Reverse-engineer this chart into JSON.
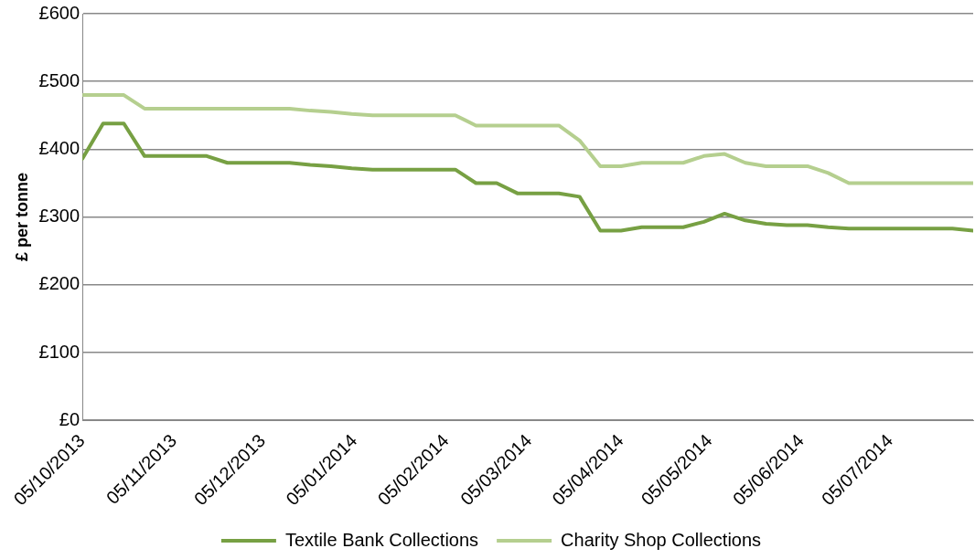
{
  "chart_data": {
    "type": "line",
    "ylabel": "£ per tonne",
    "x": [
      "2013-10-05",
      "2013-10-12",
      "2013-10-19",
      "2013-10-26",
      "2013-11-02",
      "2013-11-09",
      "2013-11-16",
      "2013-11-23",
      "2013-11-30",
      "2013-12-07",
      "2013-12-14",
      "2013-12-21",
      "2013-12-28",
      "2014-01-04",
      "2014-01-11",
      "2014-01-18",
      "2014-01-25",
      "2014-02-01",
      "2014-02-08",
      "2014-02-15",
      "2014-02-22",
      "2014-03-01",
      "2014-03-08",
      "2014-03-15",
      "2014-03-22",
      "2014-03-29",
      "2014-04-05",
      "2014-04-12",
      "2014-04-19",
      "2014-04-26",
      "2014-05-03",
      "2014-05-10",
      "2014-05-17",
      "2014-05-24",
      "2014-05-31",
      "2014-06-07",
      "2014-06-14",
      "2014-06-21",
      "2014-06-28",
      "2014-07-05",
      "2014-07-12",
      "2014-07-19",
      "2014-07-26",
      "2014-08-02"
    ],
    "series": [
      {
        "name": "Textile Bank Collections",
        "color": "#77a043",
        "values": [
          386,
          438,
          438,
          390,
          390,
          390,
          390,
          380,
          380,
          380,
          380,
          377,
          375,
          372,
          370,
          370,
          370,
          370,
          370,
          350,
          350,
          335,
          335,
          335,
          330,
          280,
          280,
          285,
          285,
          285,
          293,
          305,
          295,
          290,
          288,
          288,
          285,
          283,
          283,
          283,
          283,
          283,
          283,
          280
        ]
      },
      {
        "name": "Charity Shop Collections",
        "color": "#b5cf8f",
        "values": [
          480,
          480,
          480,
          460,
          460,
          460,
          460,
          460,
          460,
          460,
          460,
          457,
          455,
          452,
          450,
          450,
          450,
          450,
          450,
          435,
          435,
          435,
          435,
          435,
          413,
          375,
          375,
          380,
          380,
          380,
          390,
          393,
          380,
          375,
          375,
          375,
          365,
          350,
          350,
          350,
          350,
          350,
          350,
          350
        ]
      }
    ],
    "xlim": [
      "2013-10-05",
      "2014-08-02"
    ],
    "xticks": [
      {
        "value": "2013-10-05",
        "label": "05/10/2013"
      },
      {
        "value": "2013-11-05",
        "label": "05/11/2013"
      },
      {
        "value": "2013-12-05",
        "label": "05/12/2013"
      },
      {
        "value": "2014-01-05",
        "label": "05/01/2014"
      },
      {
        "value": "2014-02-05",
        "label": "05/02/2014"
      },
      {
        "value": "2014-03-05",
        "label": "05/03/2014"
      },
      {
        "value": "2014-04-05",
        "label": "05/04/2014"
      },
      {
        "value": "2014-05-05",
        "label": "05/05/2014"
      },
      {
        "value": "2014-06-05",
        "label": "05/06/2014"
      },
      {
        "value": "2014-07-05",
        "label": "05/07/2014"
      }
    ],
    "ylim": [
      0,
      600
    ],
    "yticks": [
      {
        "value": 0,
        "label": "£0"
      },
      {
        "value": 100,
        "label": "£100"
      },
      {
        "value": 200,
        "label": "£200"
      },
      {
        "value": 300,
        "label": "£300"
      },
      {
        "value": 400,
        "label": "£400"
      },
      {
        "value": 500,
        "label": "£500"
      },
      {
        "value": 600,
        "label": "£600"
      }
    ],
    "grid": "y",
    "legend": "bottom",
    "marker": "none",
    "line_style": "solid"
  }
}
